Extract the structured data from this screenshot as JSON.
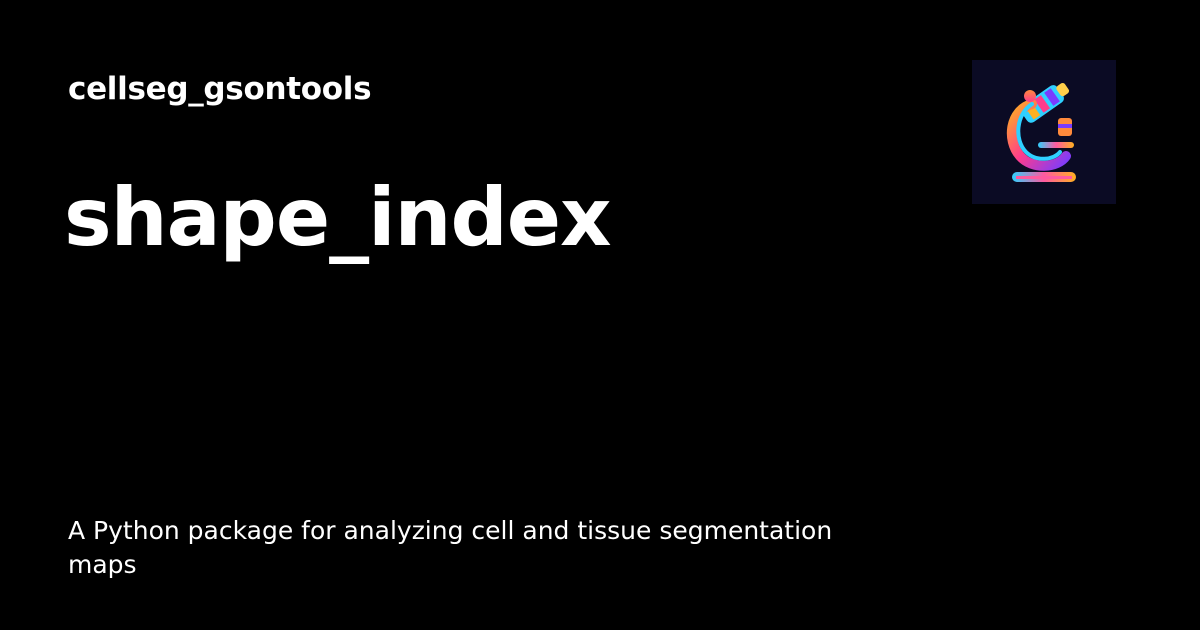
{
  "site": {
    "name": "cellseg_gsontools"
  },
  "page": {
    "title": "shape_index",
    "description": "A Python package for analyzing cell and tissue segmentation maps"
  },
  "logo": {
    "icon": "microscope-icon"
  },
  "colors": {
    "background": "#000000",
    "text": "#ffffff",
    "logo_background": "#0b0b24"
  }
}
